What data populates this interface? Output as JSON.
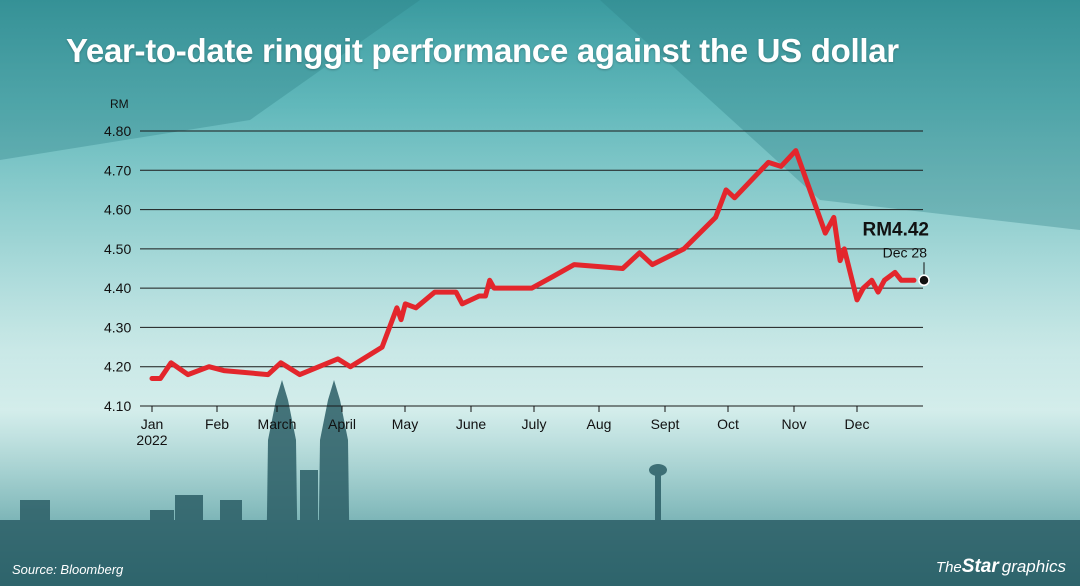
{
  "title": "Year-to-date ringgit performance against the US dollar",
  "source": "Source: Bloomberg",
  "brand": {
    "part1": "The",
    "part2": "Star",
    "part3": "graphics"
  },
  "colors": {
    "line": "#e3262c",
    "grid": "#1a1a1a",
    "text": "#111111",
    "title": "#ffffff"
  },
  "chart_data": {
    "type": "line",
    "title": "Year-to-date ringgit performance against the US dollar",
    "ylabel": "RM",
    "xlabel": "",
    "ylim": [
      4.1,
      4.8
    ],
    "yticks": [
      "4.80",
      "4.70",
      "4.60",
      "4.50",
      "4.40",
      "4.30",
      "4.20",
      "4.10"
    ],
    "xticks": [
      "Jan",
      "Feb",
      "March",
      "April",
      "May",
      "June",
      "July",
      "Aug",
      "Sept",
      "Oct",
      "Nov",
      "Dec"
    ],
    "xticks_year": "2022",
    "grid": true,
    "series": [
      {
        "x": [
          "2022-01-01",
          "2022-01-05",
          "2022-01-10",
          "2022-01-18",
          "2022-01-28",
          "2022-02-04",
          "2022-02-25",
          "2022-03-03",
          "2022-03-12",
          "2022-03-30",
          "2022-04-05",
          "2022-04-20",
          "2022-04-27",
          "2022-04-29",
          "2022-05-01",
          "2022-05-06",
          "2022-05-15",
          "2022-05-25",
          "2022-05-28",
          "2022-06-05",
          "2022-06-08",
          "2022-06-10",
          "2022-06-12",
          "2022-06-15",
          "2022-06-30",
          "2022-07-10",
          "2022-07-20",
          "2022-08-12",
          "2022-08-20",
          "2022-08-26",
          "2022-09-10",
          "2022-09-25",
          "2022-09-30",
          "2022-10-04",
          "2022-10-20",
          "2022-10-26",
          "2022-11-02",
          "2022-11-16",
          "2022-11-20",
          "2022-11-23",
          "2022-11-25",
          "2022-12-01",
          "2022-12-04",
          "2022-12-08",
          "2022-12-11",
          "2022-12-14",
          "2022-12-19",
          "2022-12-22",
          "2022-12-28"
        ],
        "values": [
          4.17,
          4.17,
          4.21,
          4.18,
          4.2,
          4.19,
          4.18,
          4.21,
          4.18,
          4.22,
          4.2,
          4.25,
          4.35,
          4.32,
          4.36,
          4.35,
          4.39,
          4.39,
          4.36,
          4.38,
          4.38,
          4.42,
          4.4,
          4.4,
          4.4,
          4.43,
          4.46,
          4.45,
          4.49,
          4.46,
          4.5,
          4.58,
          4.65,
          4.63,
          4.72,
          4.71,
          4.75,
          4.54,
          4.58,
          4.47,
          4.5,
          4.37,
          4.4,
          4.42,
          4.39,
          4.42,
          4.44,
          4.42,
          4.42
        ]
      }
    ],
    "annotation": {
      "value": "RM4.42",
      "label": "Dec 28",
      "x": "2022-12-28",
      "y": 4.42
    }
  }
}
